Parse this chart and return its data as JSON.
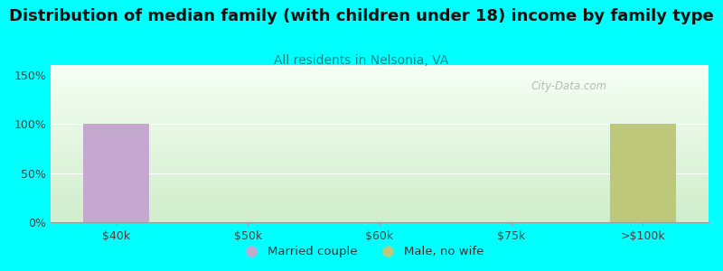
{
  "title": "Distribution of median family (with children under 18) income by family type",
  "subtitle": "All residents in Nelsonia, VA",
  "background_color": "#00ffff",
  "categories": [
    "$40k",
    "$50k",
    "$60k",
    "$75k",
    ">$100k"
  ],
  "married_couple_values": [
    100,
    0,
    0,
    0,
    0
  ],
  "male_no_wife_values": [
    0,
    0,
    0,
    0,
    100
  ],
  "married_couple_color": "#c4a8d0",
  "male_no_wife_color": "#bec87a",
  "ylabel_ticks": [
    0,
    50,
    100,
    150
  ],
  "ylabel_labels": [
    "0%",
    "50%",
    "100%",
    "150%"
  ],
  "ylim": [
    0,
    160
  ],
  "title_fontsize": 13,
  "subtitle_fontsize": 10,
  "subtitle_color": "#008b8b",
  "axis_label_fontsize": 9,
  "legend_labels": [
    "Married couple",
    "Male, no wife"
  ],
  "legend_colors": [
    "#c4a8d0",
    "#bec87a"
  ],
  "watermark": "City-Data.com",
  "bar_width": 0.5
}
